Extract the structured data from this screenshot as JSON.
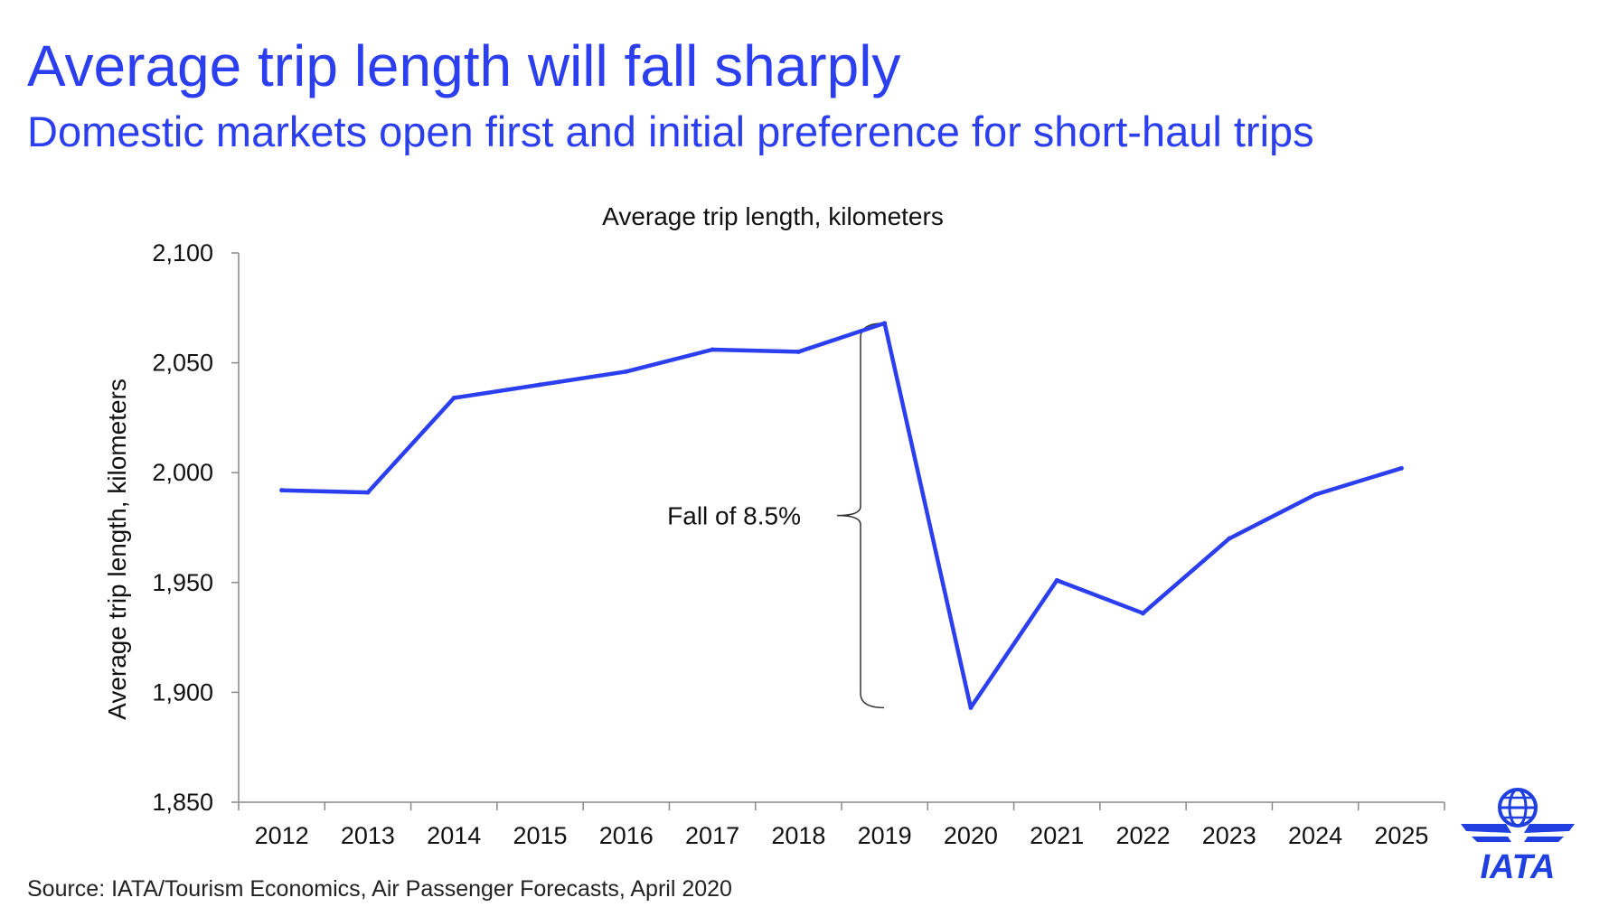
{
  "header": {
    "title": "Average trip length will fall sharply",
    "subtitle": "Domestic markets open first and initial preference for short-haul trips"
  },
  "footer": {
    "source": "Source: IATA/Tourism Economics, Air Passenger Forecasts, April 2020"
  },
  "logo": {
    "text": "IATA",
    "icon": "iata-globe-wings-logo",
    "color": "#1f3fe0"
  },
  "colors": {
    "accent": "#2b3ff0",
    "line": "#2b3ff0"
  },
  "chart_data": {
    "type": "line",
    "title": "Average trip length, kilometers",
    "ylabel": "Average trip length, kilometers",
    "xlabel": "",
    "ylim": [
      1850,
      2100
    ],
    "yticks": [
      1850,
      1900,
      1950,
      2000,
      2050,
      2100
    ],
    "ytick_labels": [
      "1,850",
      "1,900",
      "1,950",
      "2,000",
      "2,050",
      "2,100"
    ],
    "categories": [
      "2012",
      "2013",
      "2014",
      "2015",
      "2016",
      "2017",
      "2018",
      "2019",
      "2020",
      "2021",
      "2022",
      "2023",
      "2024",
      "2025"
    ],
    "series": [
      {
        "values": [
          1992,
          1991,
          2034,
          2040,
          2046,
          2056,
          2055,
          2068,
          1893,
          1951,
          1936,
          1970,
          1990,
          2002
        ]
      }
    ],
    "grid": false,
    "legend": "none",
    "annotation": {
      "text": "Fall of 8.5%",
      "from": 2068,
      "to": 1893
    }
  }
}
